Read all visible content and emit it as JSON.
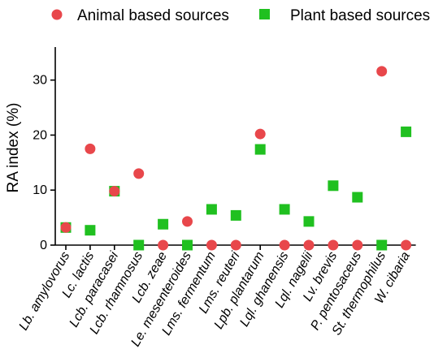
{
  "chart_data": {
    "type": "scatter",
    "title": "",
    "xlabel": "",
    "ylabel": "RA index (%)",
    "ylim": [
      0,
      36
    ],
    "yticks": [
      0,
      10,
      20,
      30
    ],
    "grid": false,
    "legend_position": "top",
    "categories": [
      "Lb. amylovorus",
      "Lc. lactis",
      "Lcb. paracasei",
      "Lcb. rhamnosus",
      "Lcb. zeae",
      "Le. mesenteroides",
      "Lms. fermentum",
      "Lms. reuteri",
      "Lpb. plantarum",
      "Lql. ghanensis",
      "Lql. nagelii",
      "Lv. brevis",
      "P. pentosaceus",
      "St. thermophilus",
      "W. cibaria"
    ],
    "series": [
      {
        "name": "Animal based sources",
        "color": "#e8474b",
        "marker": "circle",
        "values": [
          3.2,
          17.5,
          9.8,
          13.0,
          0,
          4.3,
          0,
          0,
          20.2,
          0,
          0,
          0,
          0,
          31.6,
          0
        ]
      },
      {
        "name": "Plant based sources",
        "color": "#20c020",
        "marker": "square",
        "values": [
          3.2,
          2.7,
          9.8,
          0,
          3.8,
          0,
          6.5,
          5.4,
          17.4,
          6.5,
          4.3,
          10.8,
          8.7,
          0,
          20.6
        ]
      }
    ]
  }
}
